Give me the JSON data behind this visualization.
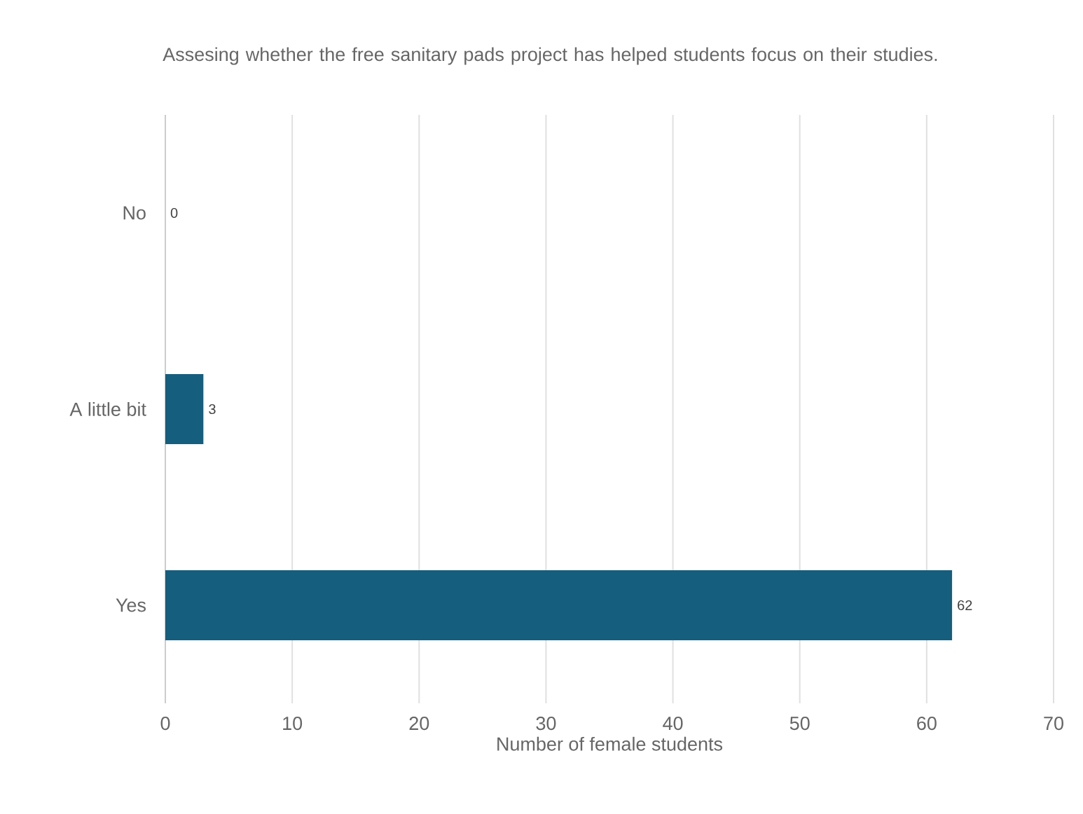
{
  "chart_data": {
    "type": "bar",
    "orientation": "horizontal",
    "title": "Assesing whether the free sanitary pads project has helped students focus on their studies.",
    "xlabel": "Number of female students",
    "categories": [
      "No",
      "A little bit",
      "Yes"
    ],
    "values": [
      0,
      3,
      62
    ],
    "color": "#155e7e",
    "data_labels": true,
    "xlim": [
      0,
      70
    ],
    "xticks": [
      0,
      10,
      20,
      30,
      40,
      50,
      60,
      70
    ],
    "grid": "x"
  }
}
